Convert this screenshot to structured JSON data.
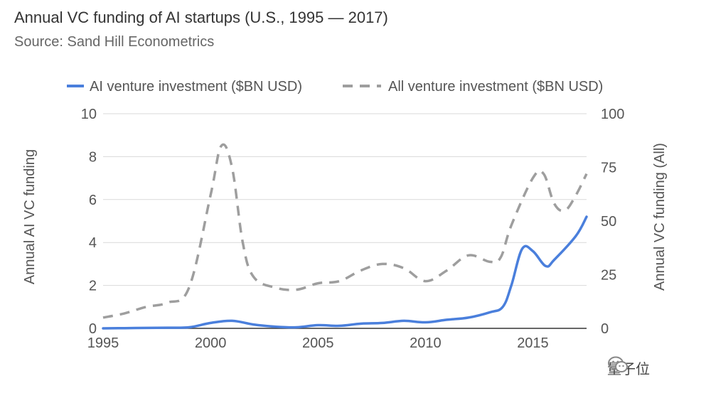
{
  "chart_data": {
    "type": "line",
    "title": "Annual VC funding of AI startups (U.S., 1995 — 2017)",
    "subtitle": "Source: Sand Hill Econometrics",
    "left_axis": {
      "label": "Annual AI VC funding",
      "range": [
        0,
        10
      ],
      "ticks": [
        "0",
        "2",
        "4",
        "6",
        "8",
        "10"
      ]
    },
    "right_axis": {
      "label": "Annual VC funding (All)",
      "range": [
        0,
        100
      ],
      "ticks": [
        "0",
        "25",
        "50",
        "75",
        "100"
      ]
    },
    "x_axis": {
      "range": [
        1995,
        2017.5
      ],
      "ticks": [
        "1995",
        "2000",
        "2005",
        "2010",
        "2015"
      ]
    },
    "grid": true,
    "legend_position": "top",
    "series": [
      {
        "name": "AI venture investment ($BN USD)",
        "axis": "left",
        "color": "#4a7fdc",
        "style": "solid",
        "points": [
          [
            1995,
            0.0
          ],
          [
            1996,
            0.01
          ],
          [
            1997,
            0.02
          ],
          [
            1998,
            0.03
          ],
          [
            1999,
            0.05
          ],
          [
            2000,
            0.25
          ],
          [
            2001,
            0.35
          ],
          [
            2002,
            0.18
          ],
          [
            2003,
            0.08
          ],
          [
            2004,
            0.05
          ],
          [
            2005,
            0.15
          ],
          [
            2006,
            0.12
          ],
          [
            2007,
            0.22
          ],
          [
            2008,
            0.25
          ],
          [
            2009,
            0.35
          ],
          [
            2010,
            0.28
          ],
          [
            2011,
            0.4
          ],
          [
            2012,
            0.5
          ],
          [
            2013,
            0.75
          ],
          [
            2013.6,
            1.0
          ],
          [
            2014,
            2.0
          ],
          [
            2014.5,
            3.7
          ],
          [
            2015,
            3.6
          ],
          [
            2015.6,
            2.9
          ],
          [
            2016,
            3.2
          ],
          [
            2017,
            4.3
          ],
          [
            2017.5,
            5.2
          ]
        ]
      },
      {
        "name": "All venture investment ($BN USD)",
        "axis": "right",
        "color": "#9e9e9e",
        "style": "dashed",
        "points": [
          [
            1995,
            5
          ],
          [
            1996,
            7
          ],
          [
            1997,
            10
          ],
          [
            1998,
            12
          ],
          [
            1999,
            19
          ],
          [
            2000,
            62
          ],
          [
            2000.5,
            85
          ],
          [
            2001,
            75
          ],
          [
            2001.5,
            40
          ],
          [
            2002,
            24
          ],
          [
            2003,
            19
          ],
          [
            2004,
            18
          ],
          [
            2005,
            21
          ],
          [
            2006,
            22
          ],
          [
            2007,
            27
          ],
          [
            2008,
            30
          ],
          [
            2009,
            28
          ],
          [
            2010,
            22
          ],
          [
            2011,
            27
          ],
          [
            2012,
            34
          ],
          [
            2013,
            31
          ],
          [
            2013.5,
            33
          ],
          [
            2014,
            48
          ],
          [
            2015,
            70
          ],
          [
            2015.5,
            72
          ],
          [
            2016,
            58
          ],
          [
            2016.5,
            55
          ],
          [
            2017,
            62
          ],
          [
            2017.5,
            72
          ]
        ]
      }
    ]
  },
  "watermark": {
    "text": "量子位"
  }
}
